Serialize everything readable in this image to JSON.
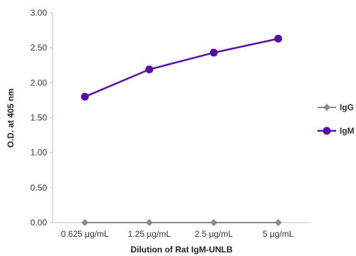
{
  "chart_data": {
    "type": "line",
    "categories": [
      "0.625 µg/mL",
      "1.25 µg/mL",
      "2.5 µg/mL",
      "5 µg/mL"
    ],
    "series": [
      {
        "name": "IgG",
        "values": [
          0.0,
          0.0,
          0.0,
          0.0
        ],
        "color": "#8a8a8a",
        "marker": "diamond"
      },
      {
        "name": "IgM",
        "values": [
          1.8,
          2.19,
          2.43,
          2.63
        ],
        "color": "#5b0ea6",
        "marker": "circle"
      }
    ],
    "title": "",
    "xlabel": "Dilution of Rat IgM-UNLB",
    "ylabel": "O.D. at 405 nm",
    "ylim": [
      0,
      3
    ],
    "yticks": [
      "0.00",
      "0.50",
      "1.00",
      "1.50",
      "2.00",
      "2.50",
      "3.00"
    ],
    "ytick_values": [
      0,
      0.5,
      1,
      1.5,
      2,
      2.5,
      3
    ],
    "grid": false,
    "legend_position": "right"
  }
}
